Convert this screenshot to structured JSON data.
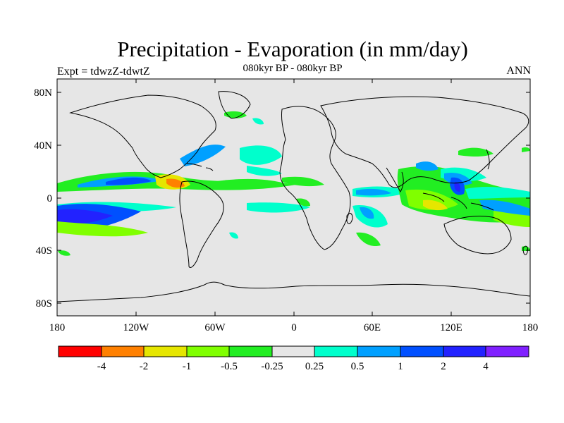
{
  "title": "Precipitation - Evaporation (in mm/day)",
  "subtitle": "080kyr BP - 080kyr BP",
  "left_label": "Expt = tdwzZ-tdwtZ",
  "right_label": "ANN",
  "colors": {
    "background": "#e6e6e6",
    "coast": "#000000",
    "bins": [
      "#ff0000",
      "#ff8000",
      "#e6e600",
      "#80ff00",
      "#22ee22",
      "#e6e6e6",
      "#00ffcc",
      "#00a0ff",
      "#0050ff",
      "#2222ff",
      "#8020ff"
    ]
  },
  "axes": {
    "lat_ticks": [
      "80N",
      "40N",
      "0",
      "40S",
      "80S"
    ],
    "lon_ticks": [
      "180",
      "120W",
      "60W",
      "0",
      "60E",
      "120E",
      "180"
    ]
  },
  "colorbar": {
    "labels": [
      "-4",
      "-2",
      "-1",
      "-0.5",
      "-0.25",
      "0.25",
      "0.5",
      "1",
      "2",
      "4"
    ]
  }
}
